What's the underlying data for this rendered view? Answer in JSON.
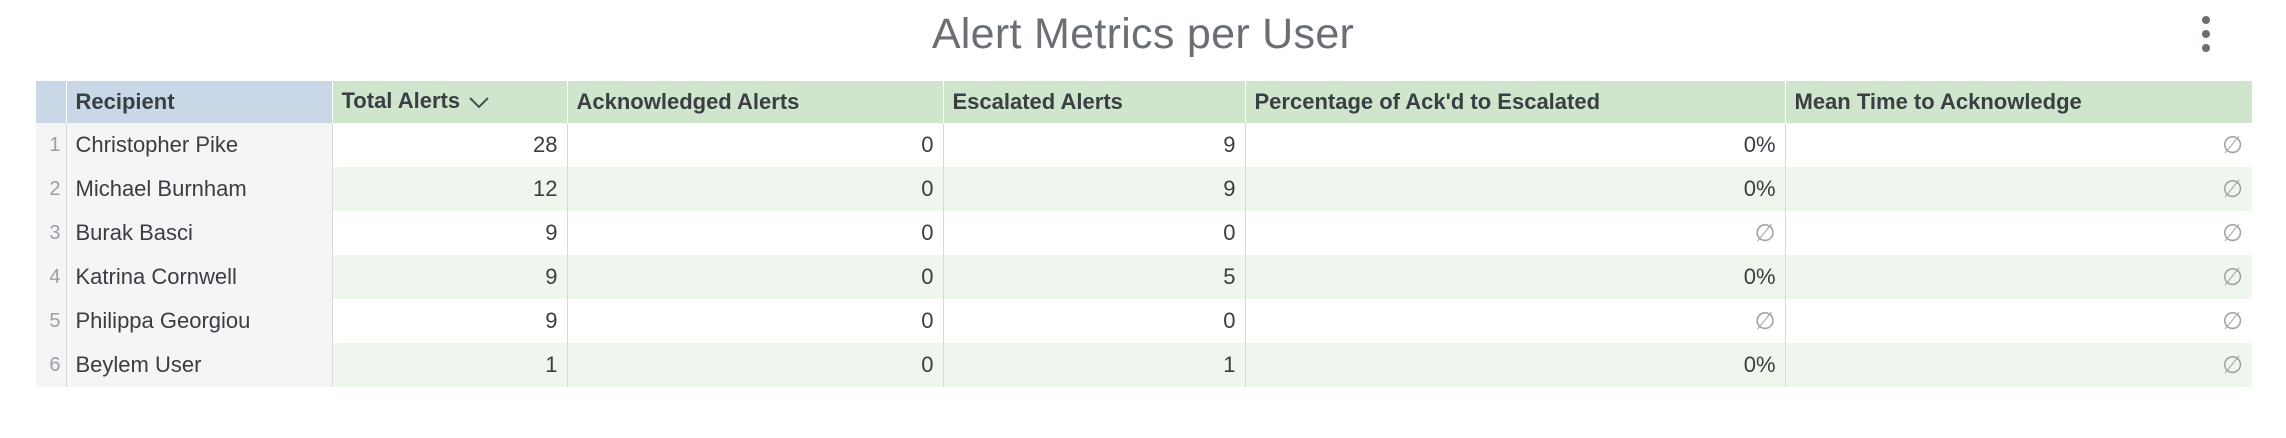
{
  "title": "Alert Metrics per User",
  "icons": {
    "menu": "more-vert-icon",
    "sort": "chevron-down-icon",
    "null": "empty-set-icon"
  },
  "colors": {
    "measure_header": "#cfe6cc",
    "dimension_header": "#c9d7e6",
    "stripe": "#eef6ed"
  },
  "table": {
    "headers": [
      "Recipient",
      "Total Alerts",
      "Acknowledged Alerts",
      "Escalated Alerts",
      "Percentage of Ack'd to Escalated",
      "Mean Time to Acknowledge"
    ],
    "sorted_column": "Total Alerts",
    "sort_direction": "descending",
    "rows": [
      {
        "n": "1",
        "recipient": "Christopher Pike",
        "total": "28",
        "ack": "0",
        "esc": "9",
        "pct": "0%",
        "mtta": "∅"
      },
      {
        "n": "2",
        "recipient": "Michael Burnham",
        "total": "12",
        "ack": "0",
        "esc": "9",
        "pct": "0%",
        "mtta": "∅"
      },
      {
        "n": "3",
        "recipient": "Burak Basci",
        "total": "9",
        "ack": "0",
        "esc": "0",
        "pct": "∅",
        "mtta": "∅"
      },
      {
        "n": "4",
        "recipient": "Katrina Cornwell",
        "total": "9",
        "ack": "0",
        "esc": "5",
        "pct": "0%",
        "mtta": "∅"
      },
      {
        "n": "5",
        "recipient": "Philippa Georgiou",
        "total": "9",
        "ack": "0",
        "esc": "0",
        "pct": "∅",
        "mtta": "∅"
      },
      {
        "n": "6",
        "recipient": "Beylem User",
        "total": "1",
        "ack": "0",
        "esc": "1",
        "pct": "0%",
        "mtta": "∅"
      }
    ]
  }
}
